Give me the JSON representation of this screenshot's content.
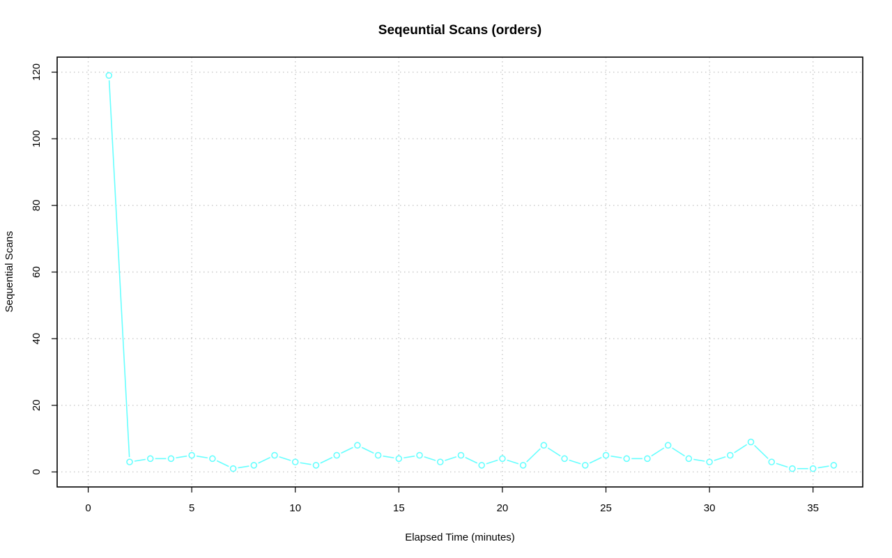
{
  "chart_data": {
    "type": "line",
    "title": "Seqeuntial Scans (orders)",
    "xlabel": "Elapsed Time (minutes)",
    "ylabel": "Sequential Scans",
    "xlim": [
      -1.5,
      37.4
    ],
    "ylim": [
      -4.5,
      124.5
    ],
    "xticks": [
      0,
      5,
      10,
      15,
      20,
      25,
      30,
      35
    ],
    "yticks": [
      0,
      20,
      40,
      60,
      80,
      100,
      120
    ],
    "grid": true,
    "legend": "none",
    "series": [
      {
        "color": "#66ffff",
        "x": [
          1,
          2,
          3,
          4,
          5,
          6,
          7,
          8,
          9,
          10,
          11,
          12,
          13,
          14,
          15,
          16,
          17,
          18,
          19,
          20,
          21,
          22,
          23,
          24,
          25,
          26,
          27,
          28,
          29,
          30,
          31,
          32,
          33,
          34,
          35,
          36
        ],
        "y": [
          119,
          3,
          4,
          4,
          5,
          4,
          1,
          2,
          5,
          3,
          2,
          5,
          8,
          5,
          4,
          5,
          3,
          5,
          2,
          4,
          2,
          8,
          4,
          2,
          5,
          4,
          4,
          8,
          4,
          3,
          5,
          9,
          3,
          1,
          1,
          2
        ]
      }
    ]
  }
}
